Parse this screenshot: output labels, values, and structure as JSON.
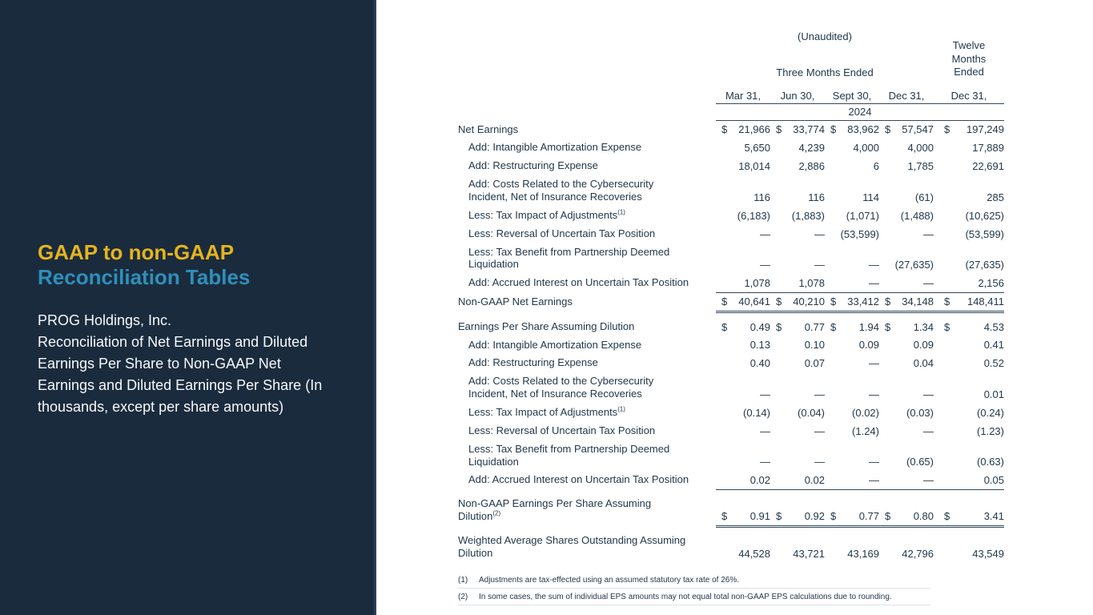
{
  "slide": {
    "sidebar": {
      "title_line1": "GAAP to non-GAAP",
      "title_line2": "Reconciliation Tables",
      "body_line1": "PROG Holdings, Inc.",
      "body_rest": "Reconciliation of Net Earnings and Diluted Earnings Per Share to Non-GAAP Net Earnings and Diluted Earnings Per Share (In thousands, except per share amounts)",
      "colors": {
        "background": "#1b2b3e",
        "title1": "#e4b41f",
        "title2": "#2e90ba",
        "body": "#f7f9fa"
      }
    },
    "table": {
      "unaudited_label": "(Unaudited)",
      "three_months_label": "Three Months Ended",
      "twelve_months_label": "Twelve Months Ended",
      "year_label": "2024",
      "column_headers": [
        "Mar 31,",
        "Jun 30,",
        "Sept 30,",
        "Dec 31,",
        "Dec 31,"
      ],
      "rows": [
        {
          "label": "Net Earnings",
          "indent": 0,
          "dollar": true,
          "values": [
            "21,966",
            "33,774",
            "83,962",
            "57,547",
            "197,249"
          ]
        },
        {
          "label": "Add: Intangible Amortization Expense",
          "indent": 1,
          "dollar": false,
          "values": [
            "5,650",
            "4,239",
            "4,000",
            "4,000",
            "17,889"
          ]
        },
        {
          "label": "Add: Restructuring Expense",
          "indent": 1,
          "dollar": false,
          "values": [
            "18,014",
            "2,886",
            "6",
            "1,785",
            "22,691"
          ]
        },
        {
          "label": "Add: Costs Related to the Cybersecurity\nIncident, Net of Insurance Recoveries",
          "indent": 1,
          "dollar": false,
          "values": [
            "116",
            "116",
            "114",
            "(61)",
            "285"
          ]
        },
        {
          "label": "Less: Tax Impact of Adjustments",
          "sup": "(1)",
          "indent": 1,
          "dollar": false,
          "values": [
            "(6,183)",
            "(1,883)",
            "(1,071)",
            "(1,488)",
            "(10,625)"
          ]
        },
        {
          "label": "Less: Reversal of Uncertain Tax Position",
          "indent": 1,
          "dollar": false,
          "values": [
            "—",
            "—",
            "(53,599)",
            "—",
            "(53,599)"
          ]
        },
        {
          "label": "Less: Tax Benefit from Partnership Deemed\nLiquidation",
          "indent": 1,
          "dollar": false,
          "values": [
            "—",
            "—",
            "—",
            "(27,635)",
            "(27,635)"
          ]
        },
        {
          "label": "Add: Accrued Interest on Uncertain Tax Position",
          "indent": 1,
          "dollar": false,
          "values": [
            "1,078",
            "1,078",
            "—",
            "—",
            "2,156"
          ],
          "underline": "single"
        },
        {
          "label": "Non-GAAP Net Earnings",
          "indent": 0,
          "dollar": true,
          "values": [
            "40,641",
            "40,210",
            "33,412",
            "34,148",
            "148,411"
          ],
          "underline": "double"
        },
        {
          "label": "Earnings Per Share Assuming Dilution",
          "indent": 0,
          "dollar": true,
          "values": [
            "0.49",
            "0.77",
            "1.94",
            "1.34",
            "4.53"
          ],
          "gap": true
        },
        {
          "label": "Add: Intangible Amortization Expense",
          "indent": 1,
          "dollar": false,
          "values": [
            "0.13",
            "0.10",
            "0.09",
            "0.09",
            "0.41"
          ]
        },
        {
          "label": "Add: Restructuring Expense",
          "indent": 1,
          "dollar": false,
          "values": [
            "0.40",
            "0.07",
            "—",
            "0.04",
            "0.52"
          ]
        },
        {
          "label": "Add: Costs Related to the Cybersecurity\nIncident, Net of Insurance Recoveries",
          "indent": 1,
          "dollar": false,
          "values": [
            "—",
            "—",
            "—",
            "—",
            "0.01"
          ]
        },
        {
          "label": "Less: Tax Impact of Adjustments",
          "sup": "(1)",
          "indent": 1,
          "dollar": false,
          "values": [
            "(0.14)",
            "(0.04)",
            "(0.02)",
            "(0.03)",
            "(0.24)"
          ]
        },
        {
          "label": "Less: Reversal of Uncertain Tax Position",
          "indent": 1,
          "dollar": false,
          "values": [
            "—",
            "—",
            "(1.24)",
            "—",
            "(1.23)"
          ]
        },
        {
          "label": "Less: Tax Benefit from Partnership Deemed\nLiquidation",
          "indent": 1,
          "dollar": false,
          "values": [
            "—",
            "—",
            "—",
            "(0.65)",
            "(0.63)"
          ]
        },
        {
          "label": "Add: Accrued Interest on Uncertain Tax Position",
          "indent": 1,
          "dollar": false,
          "values": [
            "0.02",
            "0.02",
            "—",
            "—",
            "0.05"
          ],
          "underline": "single"
        },
        {
          "label": "Non-GAAP Earnings Per Share Assuming\nDilution",
          "sup": "(2)",
          "indent": 0,
          "dollar": true,
          "values": [
            "0.91",
            "0.92",
            "0.77",
            "0.80",
            "3.41"
          ],
          "underline": "double",
          "gap": true
        },
        {
          "label": "Weighted Average Shares Outstanding Assuming\nDilution",
          "indent": 0,
          "dollar": false,
          "values": [
            "44,528",
            "43,721",
            "43,169",
            "42,796",
            "43,549"
          ],
          "gap": true
        }
      ],
      "footnotes": [
        {
          "marker": "(1)",
          "text": "Adjustments are tax-effected using an assumed statutory tax rate of 26%."
        },
        {
          "marker": "(2)",
          "text": "In some cases, the sum of individual EPS amounts may not equal total non-GAAP EPS calculations due to rounding."
        }
      ]
    }
  }
}
